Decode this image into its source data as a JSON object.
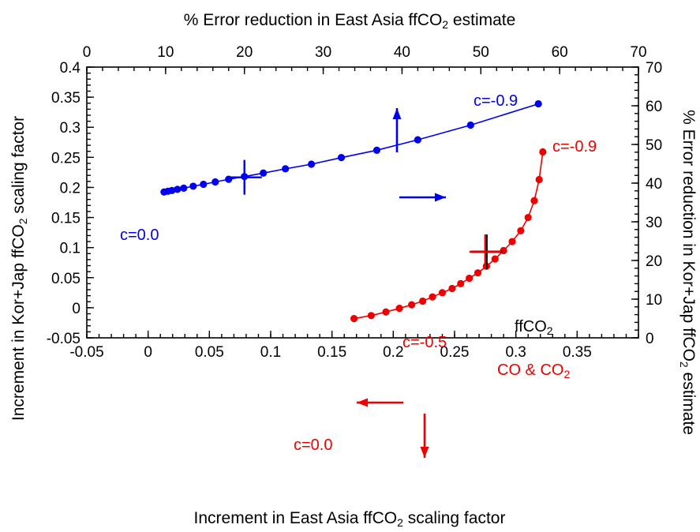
{
  "chart_data": {
    "type": "scatter",
    "title": "",
    "top_xlabel": {
      "pre": "% Error reduction in East Asia ffCO",
      "sub": "2",
      "post": " estimate"
    },
    "bottom_xlabel": {
      "pre": "Increment in East Asia ffCO",
      "sub": "2",
      "post": " scaling factor"
    },
    "left_ylabel": {
      "pre": "Increment in Kor+Jap ffCO",
      "sub": "2",
      "post": "  scaling factor"
    },
    "right_ylabel": {
      "pre": "% Error reduction in Kor+Jap ffCO",
      "sub": "2",
      "post": " estimate"
    },
    "bottom_x": {
      "lim": [
        -0.05,
        0.4
      ],
      "ticks": [
        -0.05,
        0,
        0.05,
        0.1,
        0.15,
        0.2,
        0.25,
        0.3,
        0.35
      ],
      "labels": [
        "-0.05",
        "0",
        "0.05",
        "0.1",
        "0.15",
        "0.2",
        "0.25",
        "0.3",
        "0.35"
      ]
    },
    "top_x": {
      "lim": [
        0,
        70
      ],
      "ticks": [
        0,
        10,
        20,
        30,
        40,
        50,
        60,
        70
      ],
      "labels": [
        "0",
        "10",
        "20",
        "30",
        "40",
        "50",
        "60",
        "70"
      ]
    },
    "left_y": {
      "lim": [
        -0.05,
        0.4
      ],
      "ticks": [
        -0.05,
        0,
        0.05,
        0.1,
        0.15,
        0.2,
        0.25,
        0.3,
        0.35,
        0.4
      ],
      "labels": [
        "-0.05",
        "0",
        "0.05",
        "0.1",
        "0.15",
        "0.2",
        "0.25",
        "0.3",
        "0.35",
        "0.4"
      ]
    },
    "right_y": {
      "lim": [
        0,
        70
      ],
      "ticks": [
        0,
        10,
        20,
        30,
        40,
        50,
        60,
        70
      ],
      "labels": [
        "0",
        "10",
        "20",
        "30",
        "40",
        "50",
        "60",
        "70"
      ]
    },
    "grid": false,
    "series": [
      {
        "color": "#0000ee",
        "axes": "top-right",
        "x": [
          9.8,
          10.3,
          10.8,
          11.5,
          12.3,
          13.5,
          14.8,
          16.3,
          18.0,
          20.0,
          22.4,
          25.2,
          28.5,
          32.3,
          36.8,
          42.0,
          48.7,
          57.3
        ],
        "y": [
          37.7,
          37.9,
          38.1,
          38.4,
          38.7,
          39.2,
          39.7,
          40.3,
          41.0,
          41.7,
          42.6,
          43.7,
          44.9,
          46.6,
          48.5,
          51.2,
          55.0,
          60.5
        ]
      },
      {
        "color": "#ee0000",
        "axes": "bottom-left",
        "x": [
          0.168,
          0.182,
          0.194,
          0.205,
          0.215,
          0.224,
          0.232,
          0.24,
          0.248,
          0.255,
          0.262,
          0.269,
          0.276,
          0.283,
          0.29,
          0.297,
          0.304,
          0.31,
          0.315,
          0.319,
          0.322
        ],
        "y": [
          -0.018,
          -0.013,
          -0.007,
          -0.001,
          0.005,
          0.011,
          0.018,
          0.025,
          0.032,
          0.04,
          0.049,
          0.058,
          0.069,
          0.081,
          0.095,
          0.11,
          0.128,
          0.15,
          0.178,
          0.213,
          0.259
        ]
      }
    ],
    "annotations": [
      {
        "text": "c=-0.9",
        "color": "#0000ee"
      },
      {
        "text": "c=0.0",
        "color": "#0000ee"
      },
      {
        "text": "c=-0.9",
        "color": "#ee0000"
      },
      {
        "text": "c=-0.5",
        "color": "#ee0000"
      },
      {
        "text": "c=0.0",
        "color": "#ee0000"
      },
      {
        "text": "ffCO",
        "sub": "2",
        "color": "#000000"
      },
      {
        "text": "CO & CO",
        "sub": "2",
        "color": "#ee0000"
      }
    ],
    "markers": [
      {
        "label": "blue-cross",
        "color": "#0000ee",
        "axes": "top-right",
        "x": 20.0,
        "y": 41.5
      },
      {
        "label": "black-cross",
        "color": "#000000",
        "axes": "bottom-left",
        "x": 0.276,
        "y": 0.093
      },
      {
        "label": "red-cross",
        "color": "#ee0000",
        "axes": "bottom-left",
        "x": 0.275,
        "y": 0.093
      }
    ]
  }
}
